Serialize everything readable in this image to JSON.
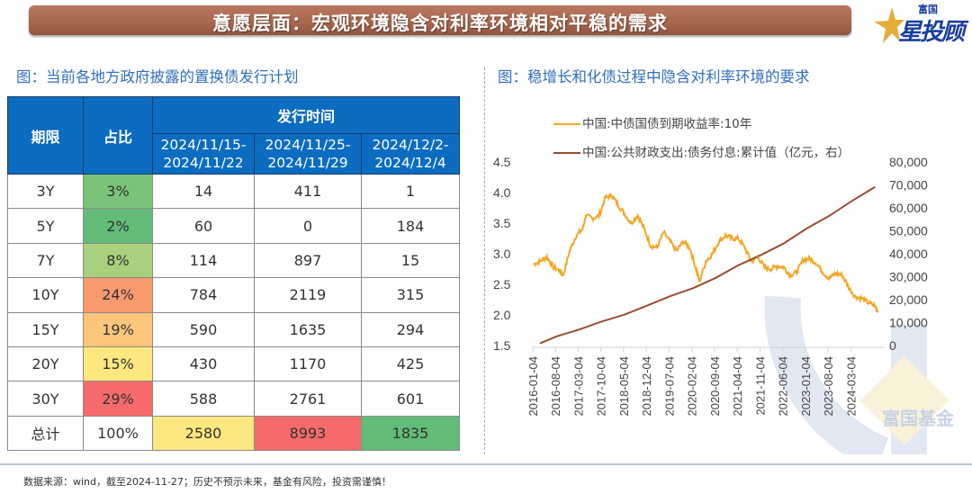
{
  "banner": {
    "title": "意愿层面：宏观环境隐含对利率环境相对平稳的需求"
  },
  "logo": {
    "small": "富国",
    "big": "星投顾"
  },
  "left_panel": {
    "title": "图：当前各地方政府披露的置换债发行计划",
    "table": {
      "headers": {
        "term": "期限",
        "share": "占比",
        "group": "发行时间"
      },
      "periods": [
        "2024/11/15-\n2024/11/22",
        "2024/11/25-\n2024/11/29",
        "2024/12/2-\n2024/12/4"
      ],
      "period_lines": [
        [
          "2024/11/15-",
          "2024/11/22"
        ],
        [
          "2024/11/25-",
          "2024/11/29"
        ],
        [
          "2024/12/2-",
          "2024/12/4"
        ]
      ],
      "rows": [
        {
          "term": "3Y",
          "share": "3%",
          "values": [
            "14",
            "411",
            "1"
          ],
          "share_color": "#7ac47a"
        },
        {
          "term": "5Y",
          "share": "2%",
          "values": [
            "60",
            "0",
            "184"
          ],
          "share_color": "#63bb78"
        },
        {
          "term": "7Y",
          "share": "8%",
          "values": [
            "114",
            "897",
            "15"
          ],
          "share_color": "#a9d07c"
        },
        {
          "term": "10Y",
          "share": "24%",
          "values": [
            "784",
            "2119",
            "315"
          ],
          "share_color": "#f9996e"
        },
        {
          "term": "15Y",
          "share": "19%",
          "values": [
            "590",
            "1635",
            "294"
          ],
          "share_color": "#fbc57a"
        },
        {
          "term": "20Y",
          "share": "15%",
          "values": [
            "430",
            "1170",
            "425"
          ],
          "share_color": "#fde77f"
        },
        {
          "term": "30Y",
          "share": "29%",
          "values": [
            "588",
            "2761",
            "601"
          ],
          "share_color": "#f66a6c"
        }
      ],
      "total": {
        "term": "总计",
        "share": "100%",
        "values": [
          "2580",
          "8993",
          "1835"
        ],
        "colors": [
          "#fde77f",
          "#f66a6c",
          "#63bb78"
        ]
      }
    }
  },
  "right_panel": {
    "title": "图：稳增长和化债过程中隐含对利率环境的要求"
  },
  "chart_data": {
    "type": "line",
    "title": "图：稳增长和化债过程中隐含对利率环境的要求",
    "legend_position": "top",
    "x_tick_labels": [
      "2016-01-04",
      "2016-08-04",
      "2017-03-04",
      "2017-10-04",
      "2018-05-04",
      "2018-12-04",
      "2019-07-04",
      "2020-02-04",
      "2020-09-04",
      "2021-04-04",
      "2021-11-04",
      "2022-06-04",
      "2023-01-04",
      "2023-08-04",
      "2024-03-04"
    ],
    "y_left": {
      "range": [
        1.5,
        4.5
      ],
      "ticks": [
        "1.5",
        "2.0",
        "2.5",
        "3.0",
        "3.5",
        "4.0",
        "4.5"
      ]
    },
    "y_right": {
      "range": [
        0,
        80000
      ],
      "ticks": [
        "0",
        "10,000",
        "20,000",
        "30,000",
        "40,000",
        "50,000",
        "60,000",
        "70,000",
        "80,000"
      ]
    },
    "series": [
      {
        "name": "中国:中债国债到期收益率:10年",
        "axis": "left",
        "color": "#f5a623",
        "x_dates": [
          "2016-01",
          "2016-03",
          "2016-05",
          "2016-07",
          "2016-09",
          "2016-10",
          "2016-12",
          "2017-02",
          "2017-04",
          "2017-05",
          "2017-07",
          "2017-09",
          "2017-11",
          "2018-01",
          "2018-03",
          "2018-05",
          "2018-07",
          "2018-09",
          "2018-11",
          "2019-01",
          "2019-03",
          "2019-05",
          "2019-07",
          "2019-09",
          "2019-11",
          "2020-01",
          "2020-03",
          "2020-04",
          "2020-06",
          "2020-08",
          "2020-10",
          "2020-12",
          "2021-02",
          "2021-04",
          "2021-06",
          "2021-08",
          "2021-10",
          "2021-12",
          "2022-02",
          "2022-04",
          "2022-06",
          "2022-08",
          "2022-10",
          "2022-12",
          "2023-02",
          "2023-04",
          "2023-06",
          "2023-08",
          "2023-10",
          "2023-12",
          "2024-02",
          "2024-04",
          "2024-06",
          "2024-08",
          "2024-10",
          "2024-11"
        ],
        "values": [
          2.83,
          2.88,
          2.95,
          2.78,
          2.72,
          2.65,
          3.05,
          3.3,
          3.4,
          3.62,
          3.58,
          3.62,
          3.92,
          3.95,
          3.8,
          3.65,
          3.5,
          3.63,
          3.4,
          3.13,
          3.1,
          3.35,
          3.2,
          3.05,
          3.2,
          3.1,
          2.75,
          2.55,
          2.88,
          3.0,
          3.2,
          3.3,
          3.25,
          3.25,
          3.1,
          2.87,
          2.95,
          2.78,
          2.75,
          2.8,
          2.78,
          2.65,
          2.7,
          2.9,
          2.92,
          2.85,
          2.7,
          2.6,
          2.68,
          2.65,
          2.45,
          2.3,
          2.27,
          2.2,
          2.15,
          2.05
        ]
      },
      {
        "name": "中国:公共财政支出:债务付息:累计值（亿元，右）",
        "axis": "right",
        "color": "#9b4d2d",
        "x_dates": [
          "2016-03",
          "2016-08",
          "2017-03",
          "2017-10",
          "2018-05",
          "2018-12",
          "2019-07",
          "2020-02",
          "2020-09",
          "2021-04",
          "2021-11",
          "2022-06",
          "2023-01",
          "2023-08",
          "2024-03",
          "2024-10"
        ],
        "values": [
          1000,
          4000,
          7000,
          10500,
          13500,
          17500,
          21500,
          25000,
          29500,
          35000,
          39500,
          44500,
          51000,
          56500,
          63000,
          69000
        ]
      }
    ]
  },
  "watermark": {
    "text": "富国基金"
  },
  "footer": {
    "note": "数据来源：wind，截至2024-11-27；历史不预示未来，基金有风险，投资需谨慎！"
  }
}
